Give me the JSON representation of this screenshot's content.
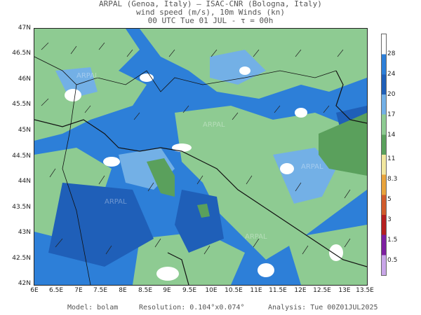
{
  "header": {
    "line1": "ARPAL (Genoa, Italy)  —  ISAC-CNR (Bologna, Italy)",
    "line2": "wind speed (m/s), 10m Winds (kn)",
    "line3": "00 UTC Tue 01 JUL  -  τ = 00h"
  },
  "map": {
    "lat_labels": [
      "47N",
      "46.5N",
      "46N",
      "45.5N",
      "45N",
      "44.5N",
      "44N",
      "43.5N",
      "43N",
      "42.5N",
      "42N"
    ],
    "lon_labels": [
      "6E",
      "6.5E",
      "7E",
      "7.5E",
      "8E",
      "8.5E",
      "9E",
      "9.5E",
      "10E",
      "10.5E",
      "11E",
      "11.5E",
      "12E",
      "12.5E",
      "13E",
      "13.5E"
    ],
    "lat_range": [
      42,
      47
    ],
    "lon_range": [
      6,
      13.5
    ],
    "watermark": "ARPAL"
  },
  "colorbar": {
    "labels": [
      "28",
      "24",
      "20",
      "17",
      "14",
      "11",
      "8.3",
      "5",
      "3",
      "1.5",
      "0.5"
    ],
    "colors": [
      "#ffffff",
      "#2d7fd8",
      "#1f5fb8",
      "#73b0e6",
      "#8ecb92",
      "#5aa05c",
      "#f2e7a0",
      "#e8a33c",
      "#d05b2b",
      "#b51f1f",
      "#7d1fa0",
      "#c9a6e8"
    ]
  },
  "footer": {
    "model": "Model: bolam",
    "resolution": "Resolution: 0.104°x0.074°",
    "analysis": "Analysis: Tue 00Z01JUL2025"
  }
}
